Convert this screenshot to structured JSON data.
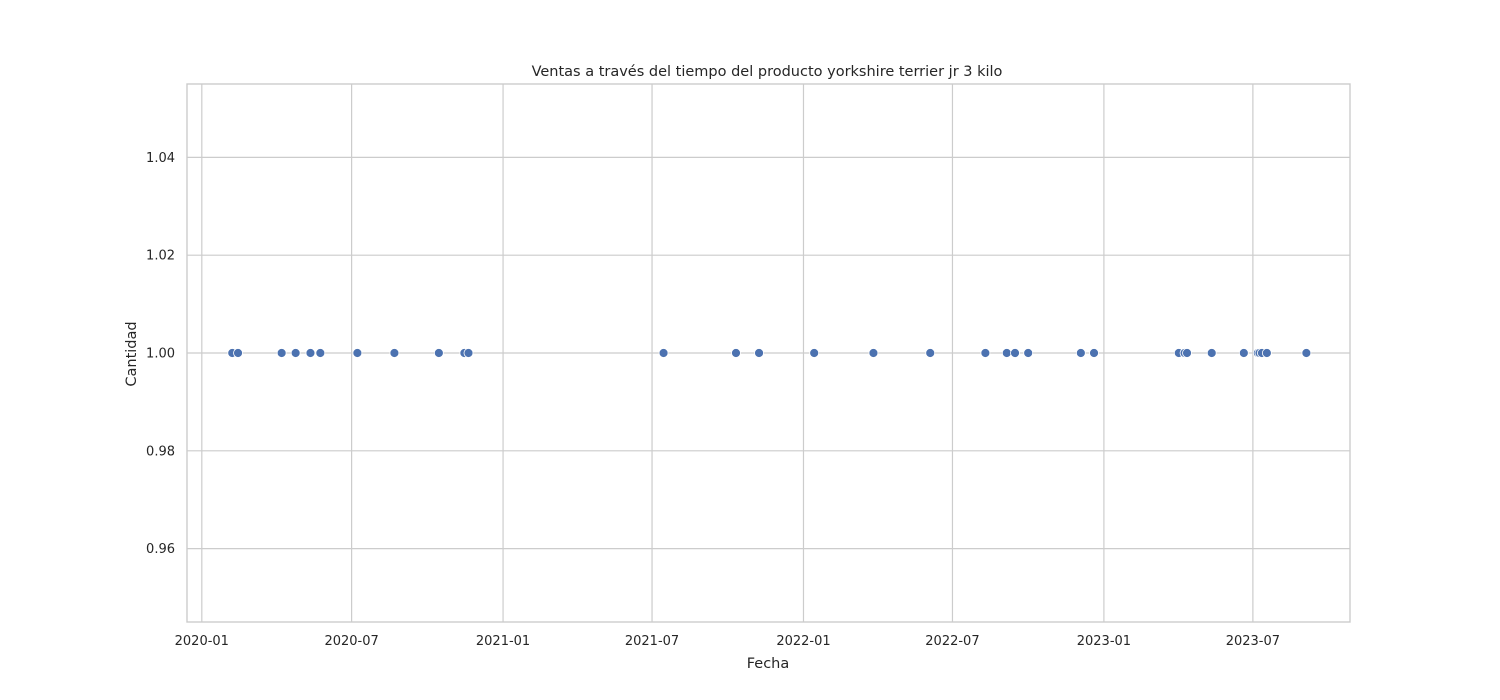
{
  "chart_data": {
    "type": "scatter",
    "title": "Ventas a través del tiempo del producto yorkshire terrier  jr 3 kilo",
    "xlabel": "Fecha",
    "ylabel": "Cantidad",
    "xlim": [
      "2019-12-14",
      "2023-10-27"
    ],
    "ylim": [
      0.945,
      1.055
    ],
    "x_ticks": [
      "2020-01",
      "2020-07",
      "2021-01",
      "2021-07",
      "2022-01",
      "2022-07",
      "2023-01",
      "2023-07"
    ],
    "y_ticks": [
      0.96,
      0.98,
      1.0,
      1.02,
      1.04
    ],
    "y_tick_labels": [
      "0.96",
      "0.98",
      "1.00",
      "1.02",
      "1.04"
    ],
    "grid": true,
    "color": "#4c72b0",
    "series": [
      {
        "x": [
          "2020-02-07",
          "2020-02-14",
          "2020-04-07",
          "2020-04-24",
          "2020-05-12",
          "2020-05-24",
          "2020-07-08",
          "2020-08-22",
          "2020-10-15",
          "2020-11-15",
          "2020-11-20",
          "2021-07-15",
          "2021-10-11",
          "2021-11-08",
          "2022-01-14",
          "2022-03-27",
          "2022-06-04",
          "2022-08-10",
          "2022-09-05",
          "2022-09-15",
          "2022-10-01",
          "2022-12-04",
          "2022-12-20",
          "2023-04-02",
          "2023-04-09",
          "2023-04-12",
          "2023-05-12",
          "2023-06-20",
          "2023-07-07",
          "2023-07-09",
          "2023-07-12",
          "2023-07-18",
          "2023-09-04"
        ],
        "y": [
          1,
          1,
          1,
          1,
          1,
          1,
          1,
          1,
          1,
          1,
          1,
          1,
          1,
          1,
          1,
          1,
          1,
          1,
          1,
          1,
          1,
          1,
          1,
          1,
          1,
          1,
          1,
          1,
          1,
          1,
          1,
          1,
          1
        ]
      }
    ]
  }
}
